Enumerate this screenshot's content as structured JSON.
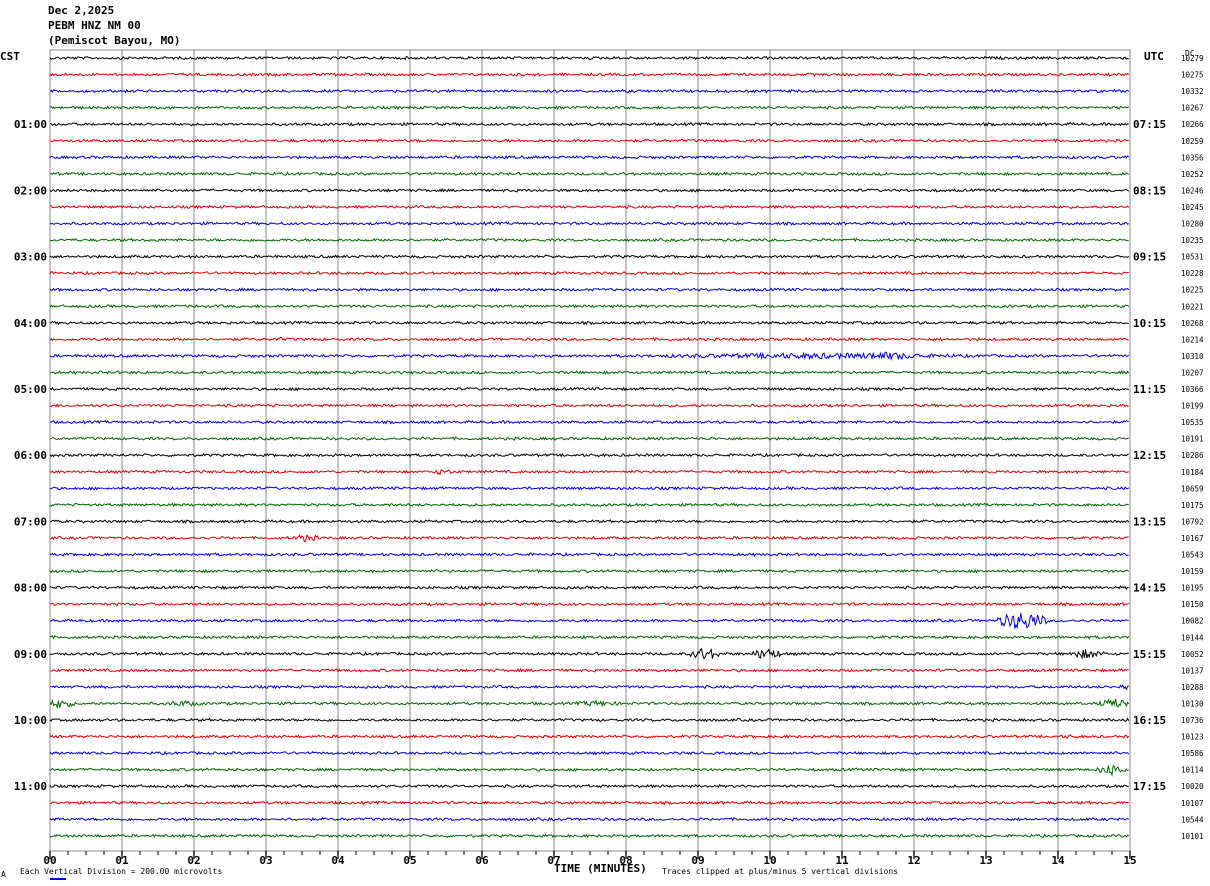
{
  "header": {
    "date": "Dec 2,2025",
    "station": "PEBM HNZ NM 00",
    "location": "(Pemiscot Bayou, MO)"
  },
  "left_timezone": "CST",
  "right_timezone": "UTC",
  "dc_label": "DC",
  "footer": {
    "scale_note": "Each Vertical Division =  200.00 microvolts",
    "clip_note": "Traces clipped at plus/minus 5 vertical divisions",
    "corner_mark": "A"
  },
  "colors": {
    "cycle": [
      "#000000",
      "#dd0000",
      "#0000dd",
      "#006600"
    ],
    "grid": "#888888"
  },
  "chart_data": {
    "type": "line",
    "xlabel": "TIME (MINUTES)",
    "xlim": [
      0,
      15
    ],
    "x_tick_labels": [
      "00",
      "01",
      "02",
      "03",
      "04",
      "05",
      "06",
      "07",
      "08",
      "09",
      "10",
      "11",
      "12",
      "13",
      "14",
      "15"
    ],
    "trace_count": 48,
    "left_hour_labels": [
      "01:00",
      "02:00",
      "03:00",
      "04:00",
      "05:00",
      "06:00",
      "07:00",
      "08:00",
      "09:00",
      "10:00",
      "11:00"
    ],
    "right_hour_labels": [
      "07:15",
      "08:15",
      "09:15",
      "10:15",
      "11:15",
      "12:15",
      "13:15",
      "14:15",
      "15:15",
      "16:15",
      "17:15"
    ],
    "dc_offsets": [
      "10279",
      "10275",
      "10332",
      "10267",
      "10266",
      "10259",
      "10356",
      "10252",
      "10246",
      "10245",
      "10280",
      "10235",
      "10531",
      "10228",
      "10225",
      "10221",
      "10268",
      "10214",
      "10310",
      "10207",
      "10366",
      "10199",
      "10535",
      "10191",
      "10286",
      "10184",
      "10659",
      "10175",
      "10792",
      "10167",
      "10543",
      "10159",
      "10195",
      "10150",
      "10082",
      "10144",
      "10052",
      "10137",
      "10288",
      "10130",
      "10736",
      "10123",
      "10586",
      "10114",
      "10020",
      "10107",
      "10544",
      "10101"
    ],
    "events": [
      {
        "trace": 17,
        "minute": 3.1,
        "amp": 2,
        "dur": 0.2
      },
      {
        "trace": 18,
        "minute": 8.1,
        "amp": 3,
        "dur": 5.0
      },
      {
        "trace": 18,
        "minute": 11.0,
        "amp": 4,
        "dur": 1.2
      },
      {
        "trace": 25,
        "minute": 5.3,
        "amp": 3,
        "dur": 0.3
      },
      {
        "trace": 29,
        "minute": 3.4,
        "amp": 4,
        "dur": 0.3
      },
      {
        "trace": 34,
        "minute": 13.2,
        "amp": 10,
        "dur": 0.6
      },
      {
        "trace": 36,
        "minute": 8.95,
        "amp": 7,
        "dur": 0.3
      },
      {
        "trace": 36,
        "minute": 9.8,
        "amp": 6,
        "dur": 0.3
      },
      {
        "trace": 36,
        "minute": 14.2,
        "amp": 5,
        "dur": 0.4
      },
      {
        "trace": 38,
        "minute": 14.9,
        "amp": 4,
        "dur": 0.1
      },
      {
        "trace": 39,
        "minute": 0.0,
        "amp": 5,
        "dur": 0.3
      },
      {
        "trace": 39,
        "minute": 1.6,
        "amp": 3,
        "dur": 0.5
      },
      {
        "trace": 39,
        "minute": 7.3,
        "amp": 3,
        "dur": 0.6
      },
      {
        "trace": 39,
        "minute": 14.6,
        "amp": 5,
        "dur": 0.4
      },
      {
        "trace": 41,
        "minute": 13.9,
        "amp": 2,
        "dur": 0.5
      },
      {
        "trace": 43,
        "minute": 14.6,
        "amp": 6,
        "dur": 0.3
      }
    ]
  }
}
